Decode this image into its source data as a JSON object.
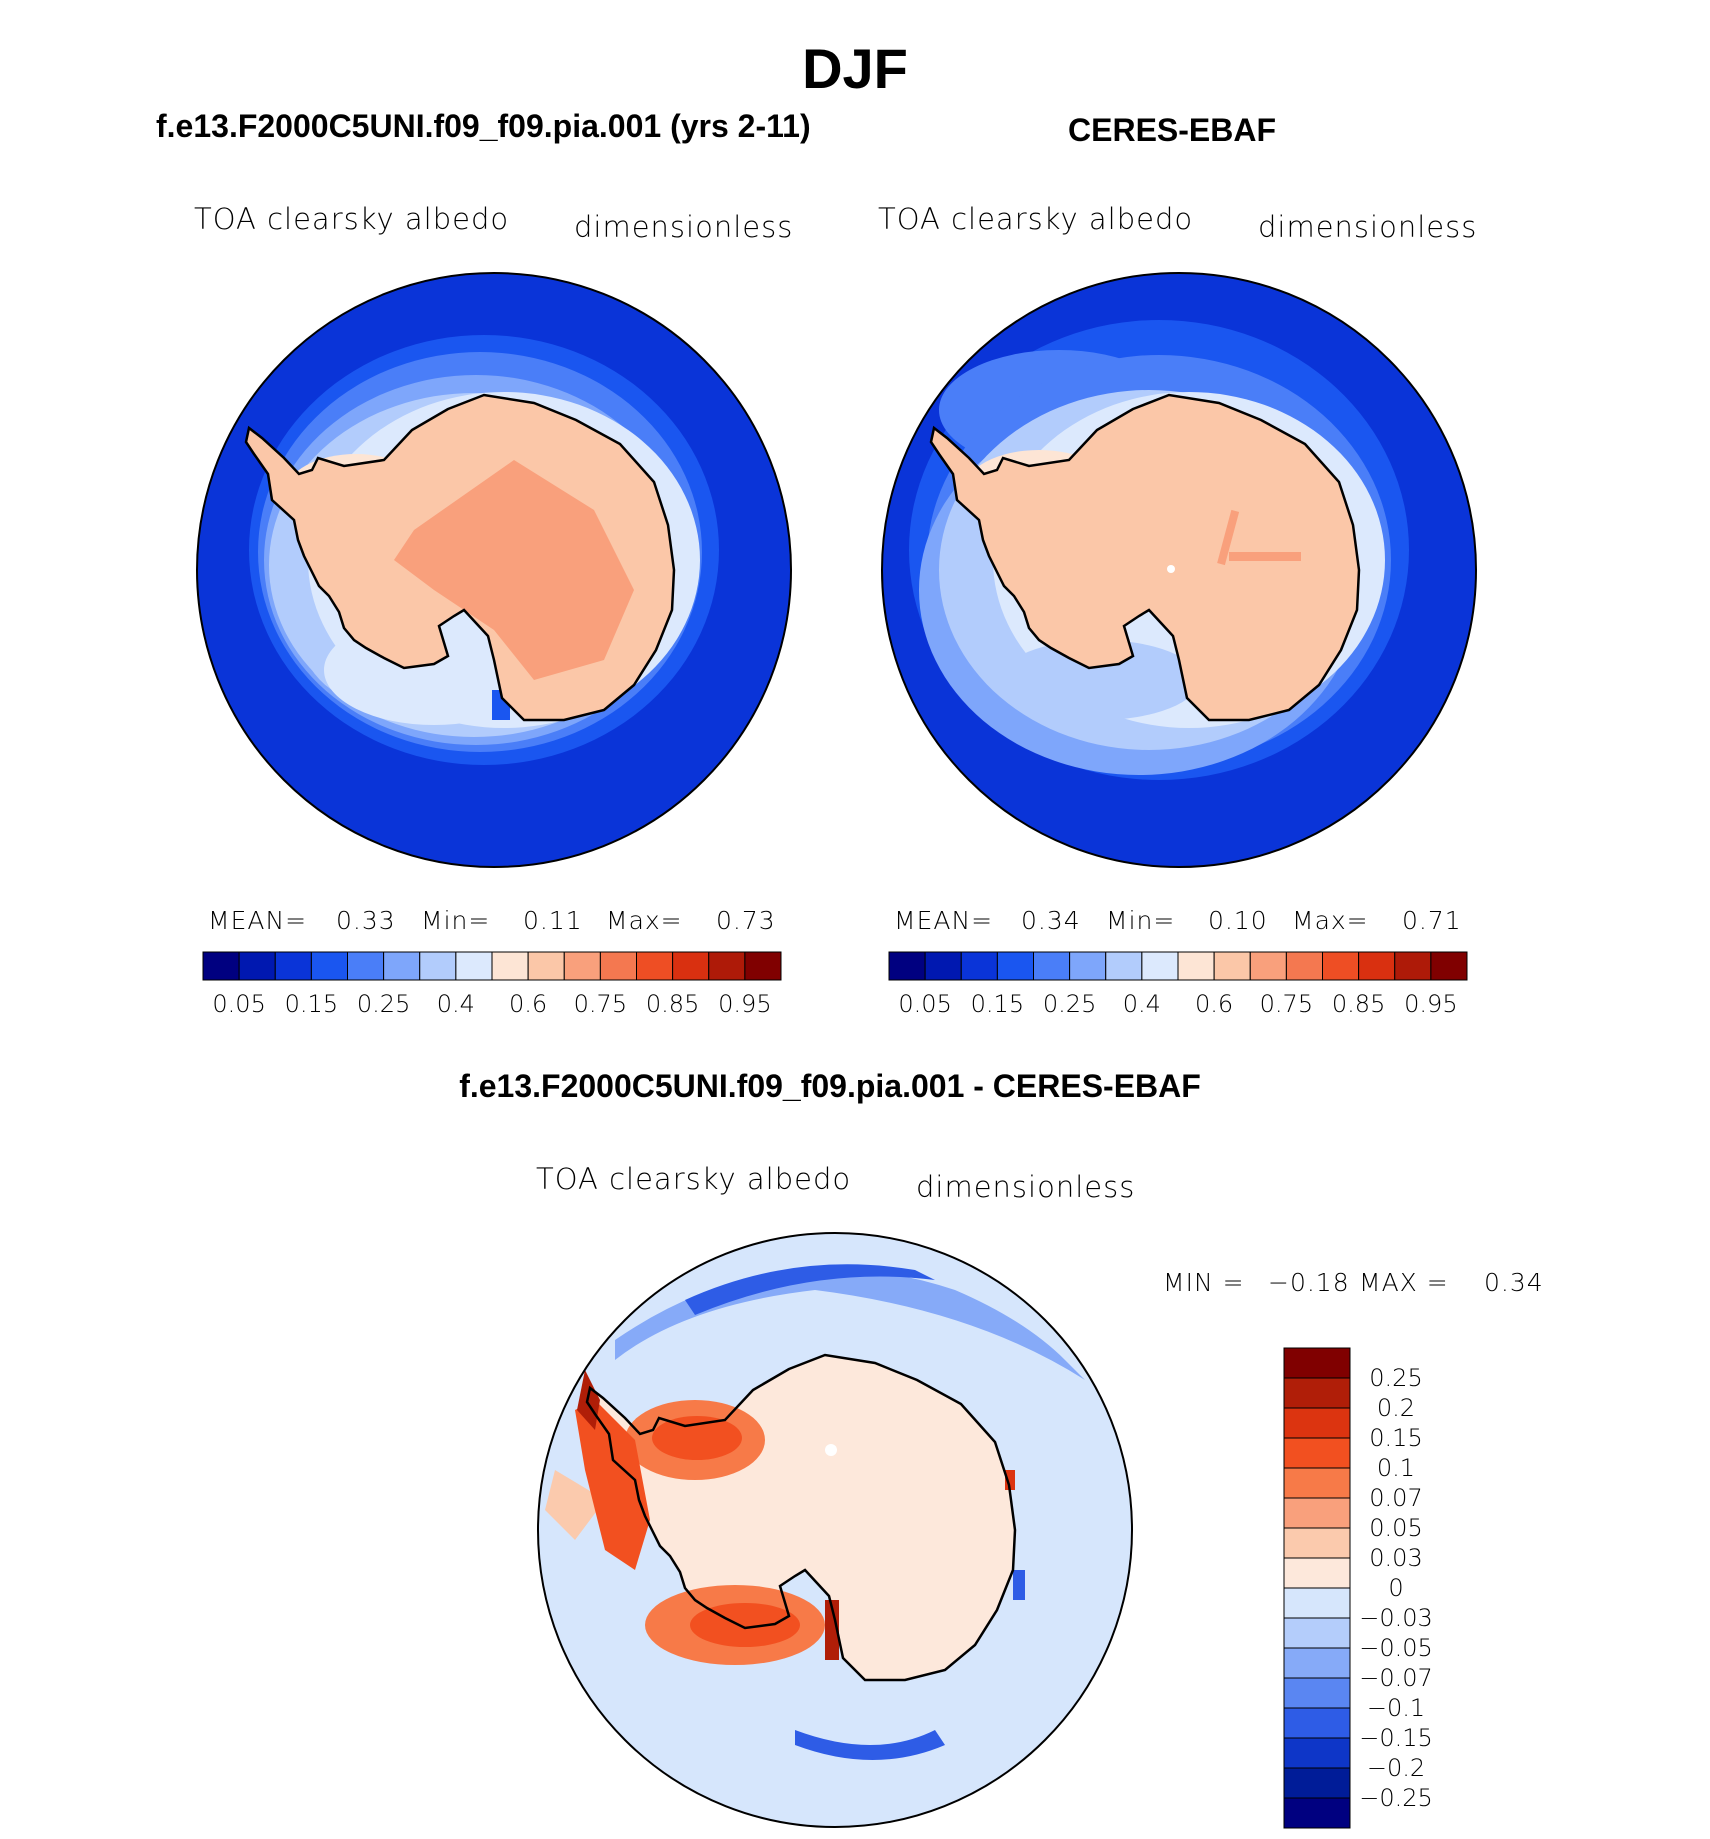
{
  "title": "DJF",
  "panels": [
    {
      "name": "f.e13.F2000C5UNI.f09_f09.pia.001 (yrs 2-11)",
      "variable": "TOA clearsky albedo",
      "units": "dimensionless",
      "stats": {
        "mean_label": "MEAN=",
        "mean": "0.33",
        "min_label": "Min=",
        "min": "0.11",
        "max_label": "Max=",
        "max": "0.73"
      }
    },
    {
      "name": "CERES-EBAF",
      "variable": "TOA clearsky albedo",
      "units": "dimensionless",
      "stats": {
        "mean_label": "MEAN=",
        "mean": "0.34",
        "min_label": "Min=",
        "min": "0.10",
        "max_label": "Max=",
        "max": "0.71"
      }
    }
  ],
  "albedo_colorbar": {
    "tick_labels": [
      "0.05",
      "0.15",
      "0.25",
      "0.4",
      "0.6",
      "0.75",
      "0.85",
      "0.95"
    ],
    "colors": [
      "#000080",
      "#0018b0",
      "#0a34d8",
      "#1a56f0",
      "#4a7ef8",
      "#7ea6fb",
      "#b2ccfc",
      "#dce9fd",
      "#fde5d5",
      "#fbc7a8",
      "#f9a07c",
      "#f47850",
      "#ee4e24",
      "#d93010",
      "#ae1a08",
      "#800000"
    ]
  },
  "difference": {
    "name": "f.e13.F2000C5UNI.f09_f09.pia.001 - CERES-EBAF",
    "variable": "TOA clearsky albedo",
    "units": "dimensionless",
    "min_label": "MIN =",
    "min": "−0.18",
    "max_label": "MAX =",
    "max": "0.34",
    "colorbar": {
      "tick_labels": [
        "0.25",
        "0.2",
        "0.15",
        "0.1",
        "0.07",
        "0.05",
        "0.03",
        "0",
        "−0.03",
        "−0.05",
        "−0.07",
        "−0.1",
        "−0.15",
        "−0.2",
        "−0.25"
      ],
      "colors": [
        "#800000",
        "#b01e08",
        "#dc3410",
        "#f25020",
        "#f77a48",
        "#f9a07c",
        "#fbcaad",
        "#fde8db",
        "#d6e6fc",
        "#b4cdfb",
        "#86aaf8",
        "#5a86f2",
        "#2e5ce6",
        "#0e36c8",
        "#001c98",
        "#000080"
      ]
    }
  }
}
